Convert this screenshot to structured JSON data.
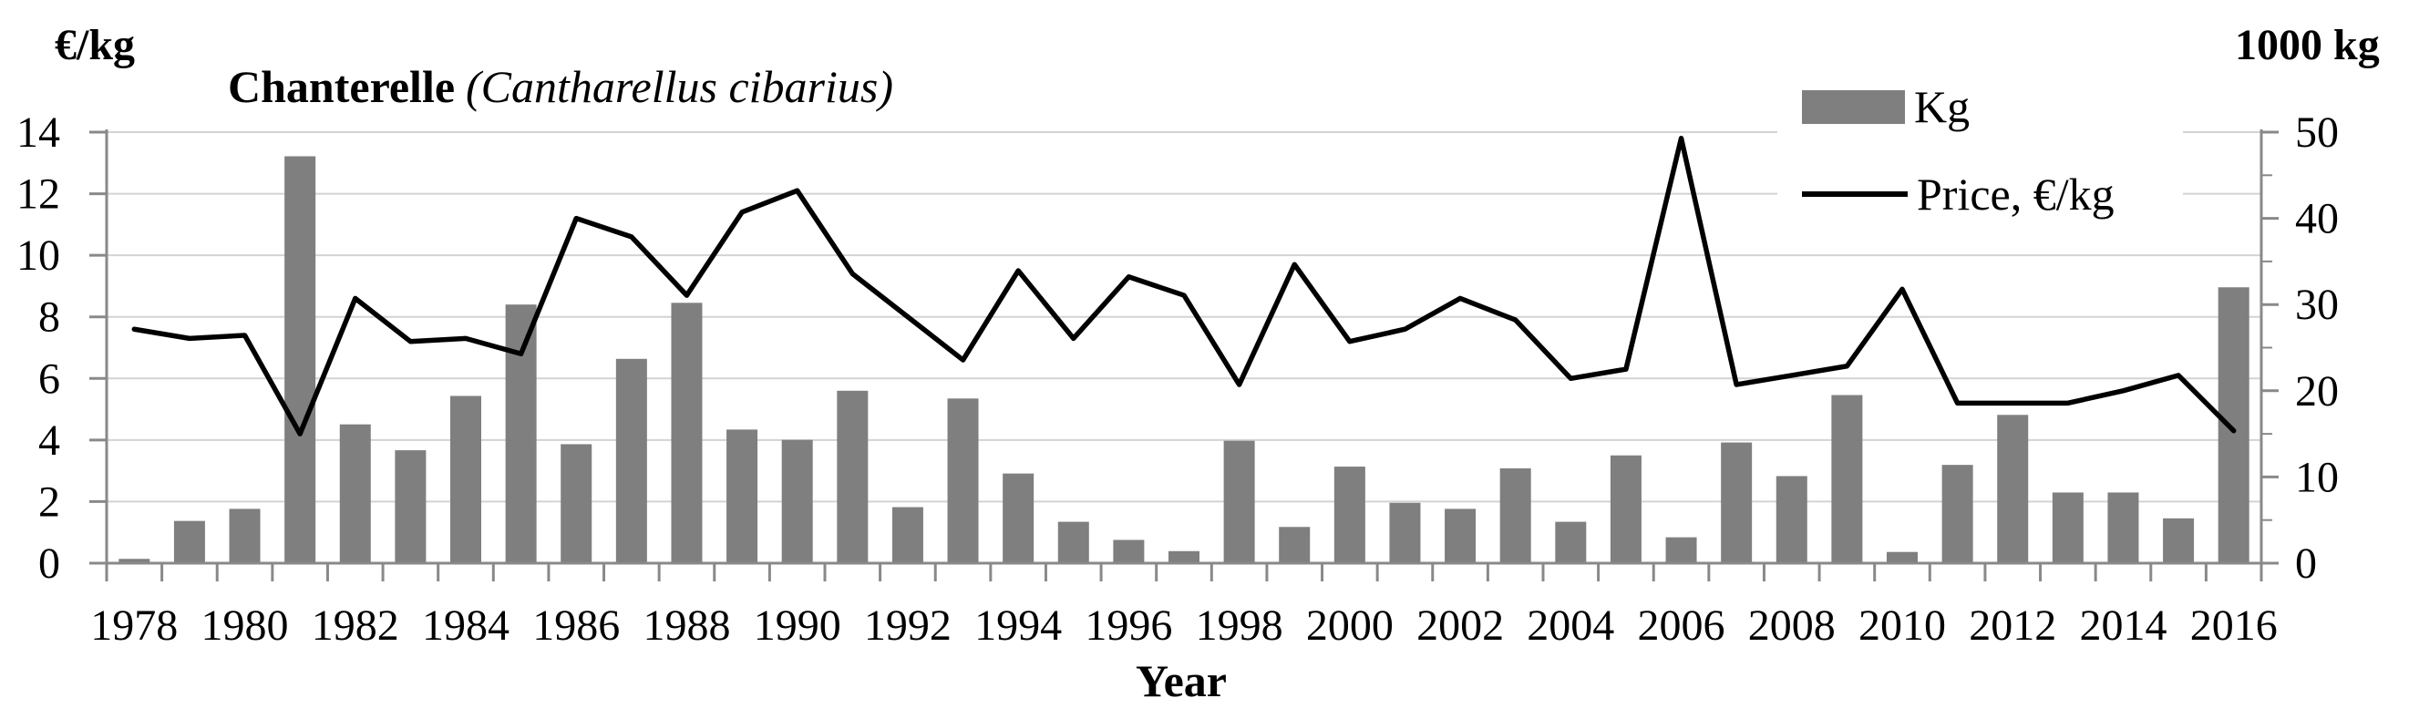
{
  "title": {
    "main": "Chanterelle",
    "latin": "(Cantharellus cibarius)"
  },
  "axis_titles": {
    "left": "€/kg",
    "right": "1000 kg",
    "x": "Year"
  },
  "legend": {
    "kg_label": "Kg",
    "price_label": "Price, €/kg"
  },
  "colors": {
    "bar": "#7f7f7f",
    "line": "#000000",
    "gridline": "#d3d3d3",
    "axis": "#898989",
    "text": "#000000"
  },
  "chart_data": {
    "type": "combo",
    "title": "Chanterelle (Cantharellus cibarius)",
    "xlabel": "Year",
    "ylabel_left": "€/kg",
    "ylabel_right": "1000 kg",
    "ylim_left": [
      0,
      14
    ],
    "ylim_right": [
      0,
      50
    ],
    "grid": true,
    "legend_position": "top-right",
    "left_ticks": [
      14,
      12,
      10,
      8,
      6,
      4,
      2,
      0
    ],
    "right_ticks": [
      50,
      40,
      30,
      20,
      10,
      0
    ],
    "right_minor_ticks": [
      45,
      35,
      25,
      15,
      5
    ],
    "x_tick_labels": [
      1978,
      1980,
      1982,
      1984,
      1986,
      1988,
      1990,
      1992,
      1994,
      1996,
      1998,
      2000,
      2002,
      2004,
      2006,
      2008,
      2010,
      2012,
      2014,
      2016
    ],
    "x": [
      1978,
      1979,
      1980,
      1981,
      1982,
      1983,
      1984,
      1985,
      1986,
      1987,
      1988,
      1989,
      1990,
      1991,
      1992,
      1993,
      1994,
      1995,
      1996,
      1997,
      1998,
      1999,
      2000,
      2001,
      2002,
      2003,
      2004,
      2005,
      2006,
      2007,
      2008,
      2009,
      2010,
      2011,
      2012,
      2013,
      2014,
      2015,
      2016
    ],
    "series": [
      {
        "name": "Kg",
        "type": "bar",
        "axis": "right",
        "unit": "1000 kg",
        "values": [
          0.5,
          4.9,
          6.3,
          47.2,
          16.1,
          13.1,
          19.4,
          30.0,
          13.8,
          23.7,
          30.2,
          15.5,
          14.3,
          20.0,
          6.5,
          19.1,
          10.4,
          4.8,
          2.7,
          1.4,
          14.2,
          4.2,
          11.2,
          7.0,
          6.3,
          11.0,
          4.8,
          12.5,
          3.0,
          14.0,
          10.1,
          19.5,
          1.3,
          11.4,
          17.2,
          8.2,
          8.2,
          5.2,
          32.0
        ]
      },
      {
        "name": "Price, €/kg",
        "type": "line",
        "axis": "left",
        "unit": "€/kg",
        "values": [
          7.6,
          7.3,
          7.4,
          4.2,
          8.6,
          7.2,
          7.3,
          6.8,
          11.2,
          10.6,
          8.7,
          11.4,
          12.1,
          9.4,
          8.0,
          6.6,
          9.5,
          7.3,
          9.3,
          8.7,
          5.8,
          9.7,
          7.2,
          7.6,
          8.6,
          7.9,
          6.0,
          6.3,
          13.8,
          5.8,
          6.1,
          6.4,
          8.9,
          5.2,
          5.2,
          5.2,
          5.6,
          6.1,
          4.3
        ]
      }
    ]
  }
}
